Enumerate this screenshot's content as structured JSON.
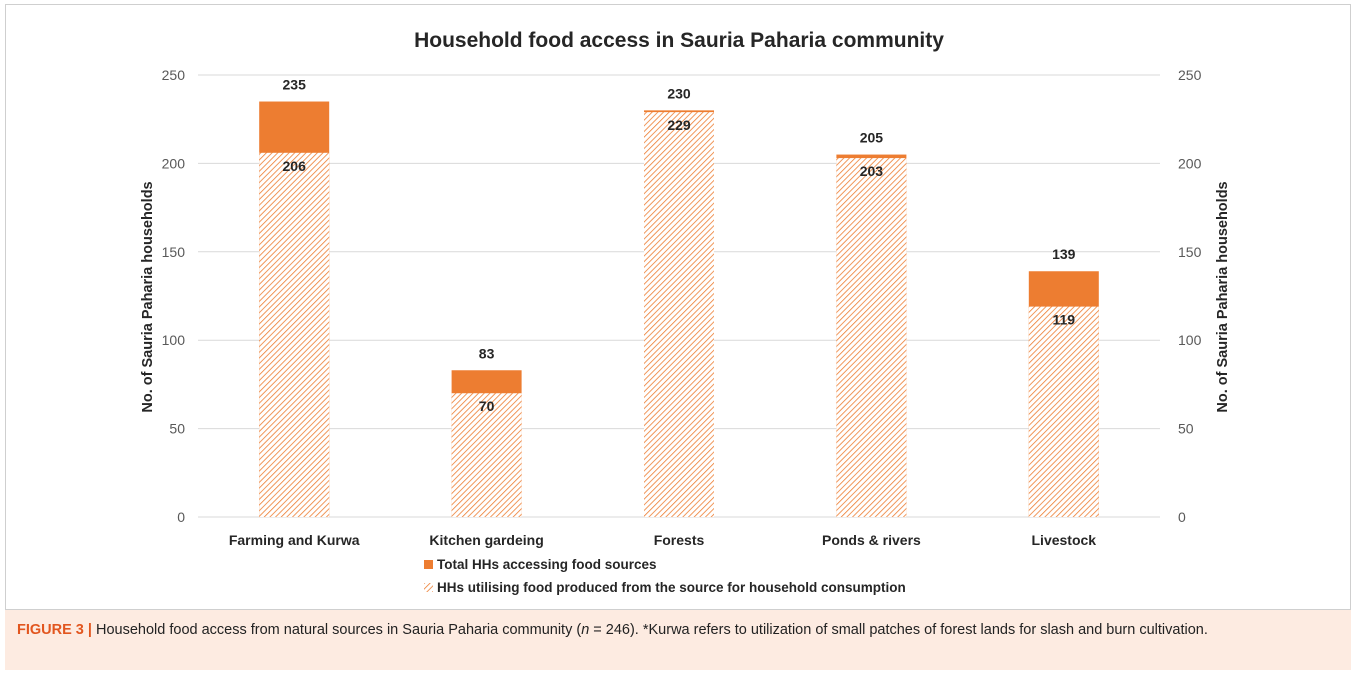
{
  "chart_data": {
    "type": "bar",
    "stacked": false,
    "overlapping": true,
    "title": "Household food access in Sauria Paharia community",
    "ylabel": "No. of Sauria Paharia households",
    "y2label": "No. of Sauria Paharia households",
    "ylim": [
      0,
      250
    ],
    "yticks": [
      0,
      50,
      100,
      150,
      200,
      250
    ],
    "grid": true,
    "legend_position": "bottom",
    "categories": [
      "Farming and Kurwa",
      "Kitchen gardeing",
      "Forests",
      "Ponds & rivers",
      "Livestock"
    ],
    "series": [
      {
        "name": "Total HHs accessing food sources",
        "values": [
          235,
          83,
          230,
          205,
          139
        ],
        "color": "#ED7D31",
        "pattern": "solid"
      },
      {
        "name": "HHs utilising food produced from the source for household consumption",
        "values": [
          206,
          70,
          229,
          203,
          119
        ],
        "color": "#ED7D31",
        "pattern": "hatched"
      }
    ]
  },
  "caption": {
    "label": "FIGURE 3 |",
    "text_before_n": " Household food access from natural sources in Sauria Paharia community (",
    "n_symbol": "n",
    "text_after_n": " = 246). *Kurwa refers to utilization of small patches of forest lands for slash and burn cultivation."
  }
}
